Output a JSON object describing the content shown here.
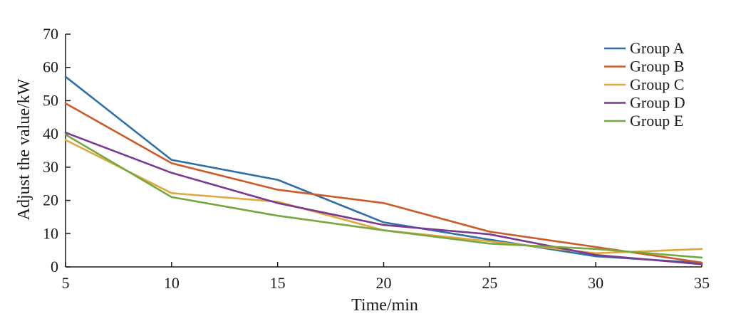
{
  "chart_data": {
    "type": "line",
    "title": "",
    "xlabel": "Time/min",
    "ylabel": "Adjust the value/kW",
    "xlim": [
      5,
      35
    ],
    "ylim": [
      0,
      70
    ],
    "x_ticks": [
      5,
      10,
      15,
      20,
      25,
      30,
      35
    ],
    "y_ticks": [
      0,
      10,
      20,
      30,
      40,
      50,
      60,
      70
    ],
    "x": [
      5,
      10,
      15,
      20,
      25,
      30,
      35
    ],
    "legend_position": "top-right",
    "grid": false,
    "series": [
      {
        "name": "Group A",
        "color": "#2e6fa7",
        "values": [
          57.2,
          32.2,
          26.2,
          13.4,
          8.2,
          3.2,
          1.2
        ]
      },
      {
        "name": "Group B",
        "color": "#cc5a28",
        "values": [
          49.2,
          31.2,
          23.2,
          19.2,
          10.6,
          6.0,
          1.3
        ]
      },
      {
        "name": "Group C",
        "color": "#dfa73d",
        "values": [
          38.2,
          22.2,
          19.6,
          11.0,
          7.7,
          4.1,
          5.4
        ]
      },
      {
        "name": "Group D",
        "color": "#7a3a90",
        "values": [
          40.4,
          28.3,
          19.2,
          12.6,
          9.8,
          3.6,
          0.8
        ]
      },
      {
        "name": "Group E",
        "color": "#76a83f",
        "values": [
          39.8,
          21.0,
          15.4,
          11.0,
          7.0,
          5.4,
          2.8
        ]
      }
    ]
  }
}
